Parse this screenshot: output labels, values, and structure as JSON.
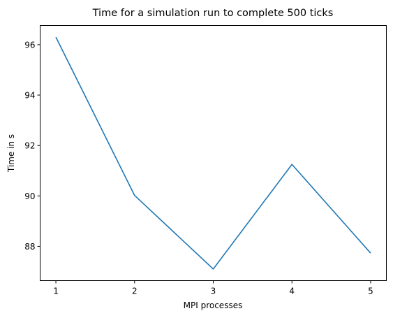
{
  "chart_data": {
    "type": "line",
    "title": "Time for a simulation run to complete 500 ticks",
    "xlabel": "MPI processes",
    "ylabel": "Time in s",
    "x": [
      1,
      2,
      3,
      4,
      5
    ],
    "series": [
      {
        "values": [
          96.3,
          90.02,
          87.1,
          91.25,
          87.73
        ],
        "color": "#1f77b4"
      }
    ],
    "xticks": [
      "1",
      "2",
      "3",
      "4",
      "5"
    ],
    "yticks": [
      88,
      90,
      92,
      94,
      96
    ],
    "xlim": [
      0.8,
      5.2
    ],
    "ylim": [
      86.64,
      96.76
    ],
    "grid": false
  }
}
